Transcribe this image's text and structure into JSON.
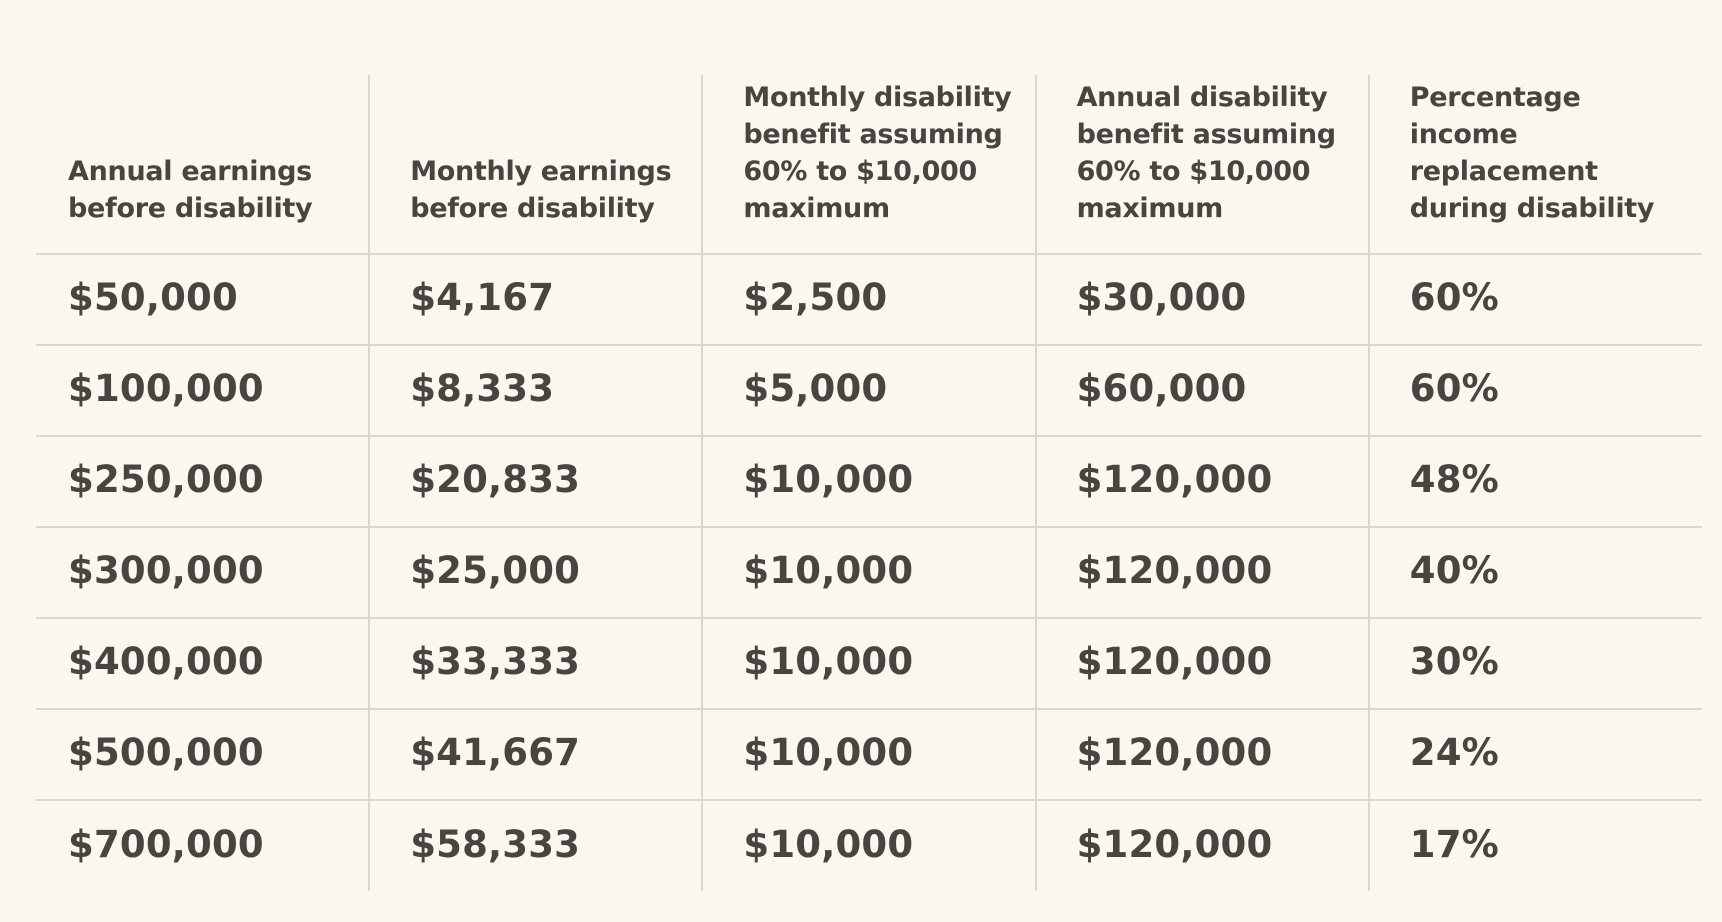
{
  "styles": {
    "background_color": "#f9f7f0",
    "grid_line_color": "#d9d7d1",
    "text_color": "#484440"
  },
  "chart_data": {
    "type": "table",
    "columns": [
      {
        "label": "Annual earnings before disability",
        "lines": [
          "Annual earnings",
          "before disability"
        ]
      },
      {
        "label": "Monthly earnings before disability",
        "lines": [
          "Monthly earnings",
          "before disability"
        ]
      },
      {
        "label": "Monthly disability benefit assuming 60% to $10,000 maximum",
        "lines": [
          "Monthly disability",
          "benefit assuming",
          "60% to $10,000",
          "maximum"
        ]
      },
      {
        "label": "Annual disability benefit assuming 60% to $10,000 maximum",
        "lines": [
          "Annual disability",
          "benefit assuming",
          "60% to $10,000",
          "maximum"
        ]
      },
      {
        "label": "Percentage income replacement during disability",
        "lines": [
          "Percentage income",
          "replacement",
          "during disability"
        ]
      }
    ],
    "rows": [
      [
        "$50,000",
        "$4,167",
        "$2,500",
        "$30,000",
        "60%"
      ],
      [
        "$100,000",
        "$8,333",
        "$5,000",
        "$60,000",
        "60%"
      ],
      [
        "$250,000",
        "$20,833",
        "$10,000",
        "$120,000",
        "48%"
      ],
      [
        "$300,000",
        "$25,000",
        "$10,000",
        "$120,000",
        "40%"
      ],
      [
        "$400,000",
        "$33,333",
        "$10,000",
        "$120,000",
        "30%"
      ],
      [
        "$500,000",
        "$41,667",
        "$10,000",
        "$120,000",
        "24%"
      ],
      [
        "$700,000",
        "$58,333",
        "$10,000",
        "$120,000",
        "17%"
      ]
    ]
  }
}
